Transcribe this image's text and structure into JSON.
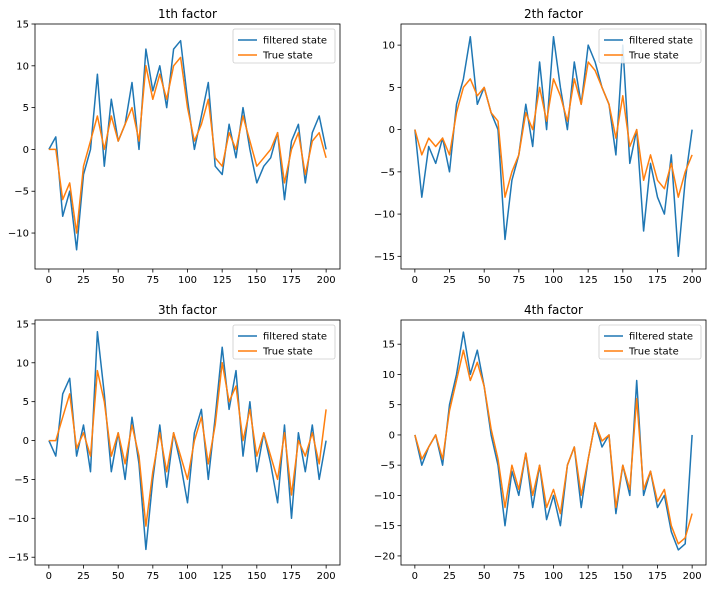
{
  "figure": {
    "background": "#ffffff"
  },
  "series_styles": [
    {
      "name": "filtered state",
      "color": "#1f77b4"
    },
    {
      "name": "True state",
      "color": "#ff7f0e"
    }
  ],
  "chart_data": [
    {
      "type": "line",
      "title": "1th factor",
      "xlabel": "",
      "ylabel": "",
      "xlim": [
        -10,
        210
      ],
      "ylim": [
        -14.3,
        15
      ],
      "xticks": [
        0,
        25,
        50,
        75,
        100,
        125,
        150,
        175,
        200
      ],
      "yticks": [
        -10,
        -5,
        0,
        5,
        10,
        15
      ],
      "grid": false,
      "legend": "top-right",
      "x": [
        0,
        5,
        10,
        15,
        20,
        25,
        30,
        35,
        40,
        45,
        50,
        55,
        60,
        65,
        70,
        75,
        80,
        85,
        90,
        95,
        100,
        105,
        110,
        115,
        120,
        125,
        130,
        135,
        140,
        145,
        150,
        155,
        160,
        165,
        170,
        175,
        180,
        185,
        190,
        195,
        200
      ],
      "series": [
        {
          "name": "filtered state",
          "values": [
            0,
            1.5,
            -8,
            -5,
            -12,
            -3,
            0,
            9,
            -2,
            6,
            1,
            3,
            8,
            0,
            12,
            7,
            10,
            5,
            12,
            13,
            6,
            0,
            4,
            8,
            -2,
            -3,
            3,
            -1,
            5,
            0,
            -4,
            -2,
            -1,
            2,
            -6,
            1,
            3,
            -4,
            2,
            4,
            0
          ]
        },
        {
          "name": "True state",
          "values": [
            0,
            0,
            -6,
            -4,
            -10,
            -2,
            1,
            4,
            0,
            4,
            1,
            3,
            5,
            1,
            10,
            6,
            9,
            6,
            10,
            11,
            5,
            1,
            3,
            6,
            -1,
            -2,
            2,
            0,
            4,
            1,
            -2,
            -1,
            0,
            2,
            -4,
            0,
            2,
            -3,
            1,
            2,
            -1
          ]
        }
      ]
    },
    {
      "type": "line",
      "title": "2th factor",
      "xlabel": "",
      "ylabel": "",
      "xlim": [
        -10,
        210
      ],
      "ylim": [
        -16.5,
        12.5
      ],
      "xticks": [
        0,
        25,
        50,
        75,
        100,
        125,
        150,
        175,
        200
      ],
      "yticks": [
        -15,
        -10,
        -5,
        0,
        5,
        10
      ],
      "grid": false,
      "legend": "top-right",
      "x": [
        0,
        5,
        10,
        15,
        20,
        25,
        30,
        35,
        40,
        45,
        50,
        55,
        60,
        65,
        70,
        75,
        80,
        85,
        90,
        95,
        100,
        105,
        110,
        115,
        120,
        125,
        130,
        135,
        140,
        145,
        150,
        155,
        160,
        165,
        170,
        175,
        180,
        185,
        190,
        195,
        200
      ],
      "series": [
        {
          "name": "filtered state",
          "values": [
            0,
            -8,
            -2,
            -4,
            -1,
            -5,
            3,
            6,
            11,
            3,
            5,
            2,
            0,
            -13,
            -6,
            -3,
            3,
            -2,
            8,
            0,
            11,
            5,
            0,
            8,
            3,
            10,
            8,
            5,
            3,
            -3,
            10,
            -4,
            0,
            -12,
            -4,
            -8,
            -10,
            -3,
            -15,
            -6,
            0
          ]
        },
        {
          "name": "True state",
          "values": [
            0,
            -3,
            -1,
            -2,
            -1,
            -3,
            2,
            5,
            6,
            4,
            5,
            2,
            1,
            -8,
            -5,
            -3,
            2,
            0,
            5,
            1,
            6,
            4,
            1,
            6,
            3,
            8,
            7,
            5,
            3,
            -1,
            4,
            -2,
            0,
            -6,
            -3,
            -6,
            -7,
            -4,
            -8,
            -5,
            -3
          ]
        }
      ]
    },
    {
      "type": "line",
      "title": "3th factor",
      "xlabel": "",
      "ylabel": "",
      "xlim": [
        -10,
        210
      ],
      "ylim": [
        -16,
        15.5
      ],
      "xticks": [
        0,
        25,
        50,
        75,
        100,
        125,
        150,
        175,
        200
      ],
      "yticks": [
        -15,
        -10,
        -5,
        0,
        5,
        10,
        15
      ],
      "grid": false,
      "legend": "top-right",
      "x": [
        0,
        5,
        10,
        15,
        20,
        25,
        30,
        35,
        40,
        45,
        50,
        55,
        60,
        65,
        70,
        75,
        80,
        85,
        90,
        95,
        100,
        105,
        110,
        115,
        120,
        125,
        130,
        135,
        140,
        145,
        150,
        155,
        160,
        165,
        170,
        175,
        180,
        185,
        190,
        195,
        200
      ],
      "series": [
        {
          "name": "filtered state",
          "values": [
            0,
            -2,
            6,
            8,
            -2,
            2,
            -4,
            14,
            6,
            -4,
            1,
            -5,
            3,
            -3,
            -14,
            -5,
            2,
            -6,
            1,
            -3,
            -8,
            1,
            4,
            -5,
            3,
            12,
            4,
            9,
            -2,
            5,
            -4,
            1,
            -3,
            -8,
            2,
            -10,
            1,
            -4,
            2,
            -5,
            0
          ]
        },
        {
          "name": "True state",
          "values": [
            0,
            0,
            3,
            6,
            -1,
            1,
            -2,
            9,
            5,
            -2,
            1,
            -3,
            2,
            -2,
            -11,
            -4,
            1,
            -4,
            1,
            -2,
            -5,
            0,
            3,
            -3,
            2,
            10,
            5,
            7,
            0,
            4,
            -2,
            1,
            -2,
            -5,
            1,
            -7,
            0,
            -2,
            1,
            -3,
            4
          ]
        }
      ]
    },
    {
      "type": "line",
      "title": "4th factor",
      "xlabel": "",
      "ylabel": "",
      "xlim": [
        -10,
        210
      ],
      "ylim": [
        -21.5,
        19
      ],
      "xticks": [
        0,
        25,
        50,
        75,
        100,
        125,
        150,
        175,
        200
      ],
      "yticks": [
        -20,
        -15,
        -10,
        -5,
        0,
        5,
        10,
        15
      ],
      "grid": false,
      "legend": "top-right",
      "x": [
        0,
        5,
        10,
        15,
        20,
        25,
        30,
        35,
        40,
        45,
        50,
        55,
        60,
        65,
        70,
        75,
        80,
        85,
        90,
        95,
        100,
        105,
        110,
        115,
        120,
        125,
        130,
        135,
        140,
        145,
        150,
        155,
        160,
        165,
        170,
        175,
        180,
        185,
        190,
        195,
        200
      ],
      "series": [
        {
          "name": "filtered state",
          "values": [
            0,
            -5,
            -2,
            0,
            -5,
            5,
            10,
            17,
            10,
            14,
            8,
            0,
            -5,
            -15,
            -6,
            -10,
            -3,
            -12,
            -5,
            -14,
            -10,
            -15,
            -5,
            -2,
            -12,
            -4,
            2,
            -2,
            0,
            -13,
            -5,
            -10,
            9,
            -10,
            -6,
            -12,
            -10,
            -16,
            -19,
            -18,
            0
          ]
        },
        {
          "name": "True state",
          "values": [
            0,
            -4,
            -2,
            0,
            -4,
            4,
            9,
            14,
            9,
            12,
            8,
            1,
            -4,
            -12,
            -5,
            -9,
            -3,
            -10,
            -5,
            -12,
            -9,
            -13,
            -5,
            -2,
            -10,
            -4,
            2,
            -1,
            0,
            -12,
            -5,
            -9,
            6,
            -9,
            -6,
            -11,
            -9,
            -15,
            -18,
            -17,
            -13
          ]
        }
      ]
    }
  ]
}
